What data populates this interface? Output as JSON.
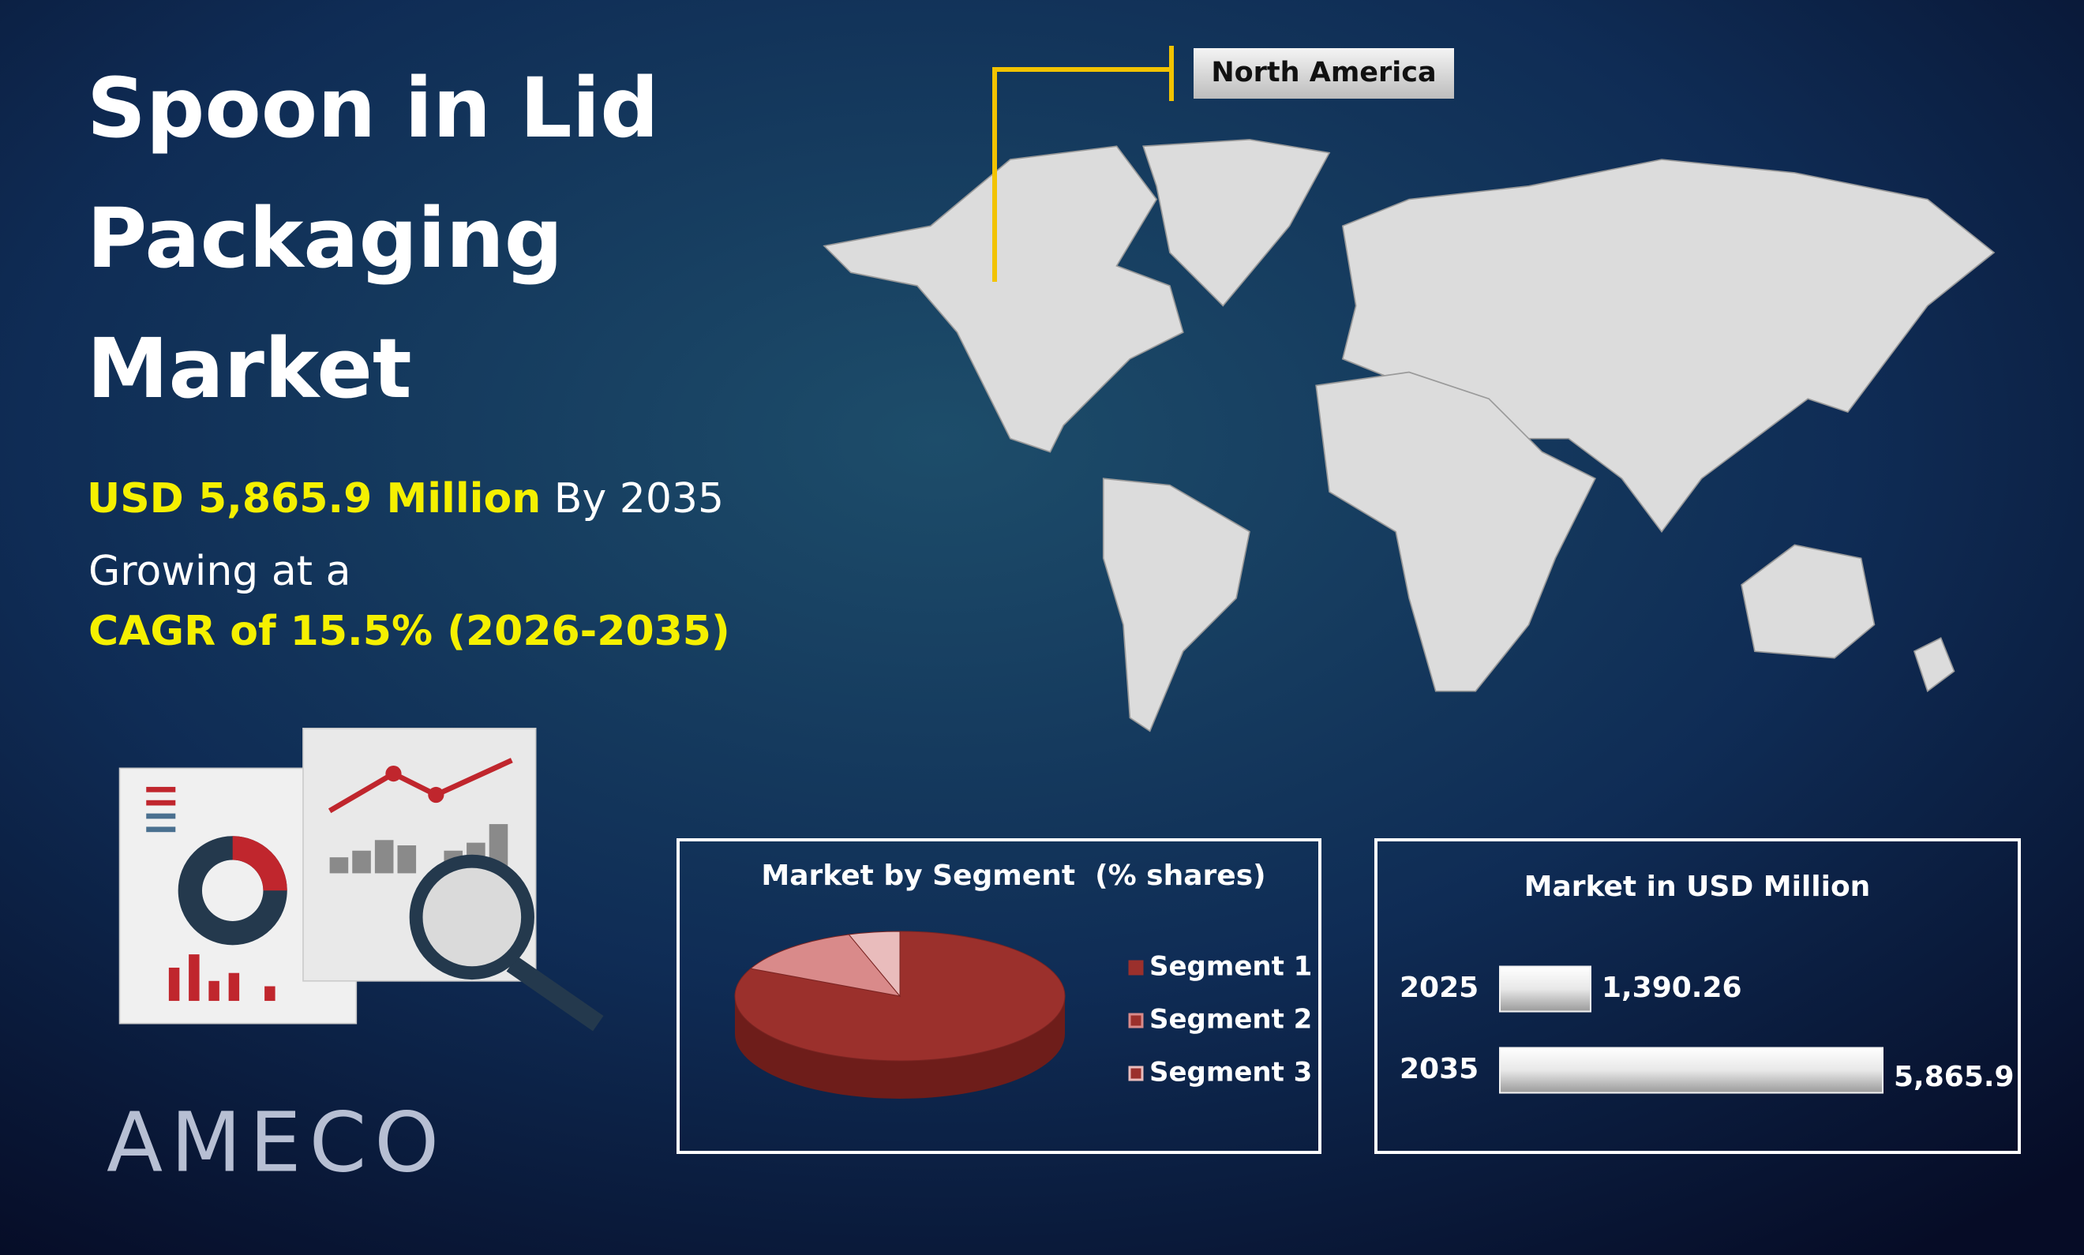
{
  "header": {
    "title": "Spoon in Lid Packaging Market",
    "value": "USD 5,865.9 Million",
    "value_suffix": "By 2035",
    "growth_intro": "Growing at a",
    "cagr": "CAGR of 15.5% (2026-2035)"
  },
  "map": {
    "region_label": "North America"
  },
  "logo": "AMECO",
  "chart_data": [
    {
      "type": "pie",
      "title": "Market by Segment  (% shares)",
      "categories": [
        "Segment 1",
        "Segment 2",
        "Segment 3"
      ],
      "values": [
        82,
        13,
        5
      ],
      "colors": [
        "#9b302c",
        "#d98a8a",
        "#e9bcbc"
      ]
    },
    {
      "type": "bar",
      "title": "Market in USD Million",
      "categories": [
        "2025",
        "2035"
      ],
      "values": [
        1390.26,
        5865.9
      ],
      "value_labels": [
        "1,390.26",
        "5,865.9"
      ],
      "color": "#f2f2f2"
    }
  ]
}
